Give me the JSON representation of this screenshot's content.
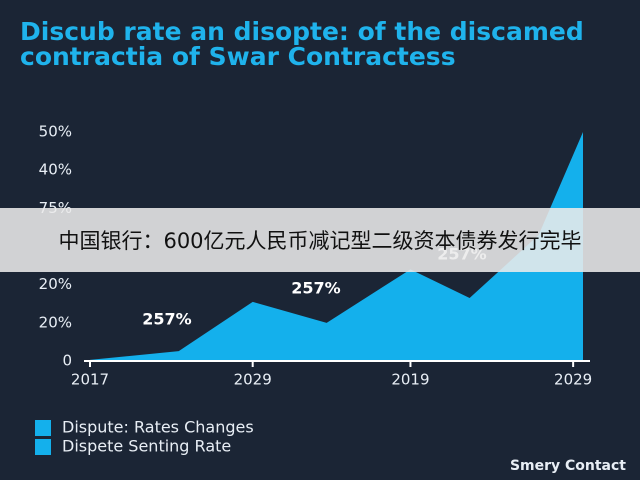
{
  "chart_data": {
    "type": "area",
    "title_lines": [
      "Discub rate an disopte: of the discamed",
      "contractia of Swar Contractess"
    ],
    "x": [
      0,
      1.8,
      3.3,
      4.8,
      6.5,
      7.7,
      9.1,
      10
    ],
    "xlim": [
      0,
      10
    ],
    "xticks": [
      {
        "value": 0,
        "label": "2017"
      },
      {
        "value": 3.3,
        "label": "2029"
      },
      {
        "value": 6.5,
        "label": "2019"
      },
      {
        "value": 9.8,
        "label": "2029"
      }
    ],
    "ylim": [
      0,
      60
    ],
    "yticks": [
      0,
      {
        "value": 10,
        "label": "20%"
      },
      {
        "value": 20,
        "label": "20%"
      },
      {
        "value": 40,
        "label": "75%"
      },
      {
        "value": 50,
        "label": "40%"
      },
      {
        "value": 60,
        "label": "50%"
      }
    ],
    "series": [
      {
        "name": "Dispute: Rates Changes",
        "color": "#14b0ec",
        "values": [
          0.3,
          2.6,
          15.5,
          10,
          24,
          16.5,
          33,
          60
        ]
      }
    ],
    "legend_extra": [
      {
        "name": "Dispete Senting Rate",
        "color": "#14b0ec"
      }
    ],
    "annotations": [
      "257%",
      "257%",
      "257%"
    ],
    "footer": "Smery Contact",
    "overlay_text": "中国银行：600亿元人民币减记型二级资本债券发行完毕"
  }
}
